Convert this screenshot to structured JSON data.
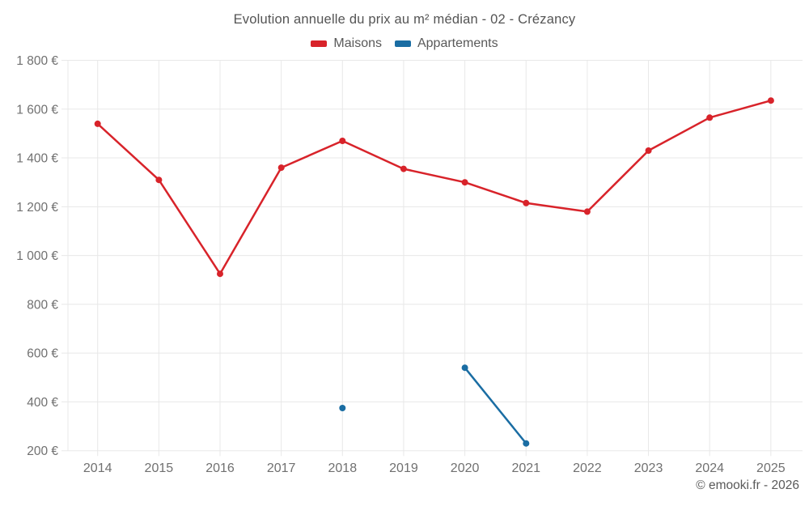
{
  "header": {
    "title": "Evolution annuelle du prix au m² médian - 02 - Crézancy"
  },
  "footer": {
    "credit": "© emooki.fr - 2026"
  },
  "colors": {
    "maisons": "#d8232a",
    "appartements": "#1a6da3",
    "gridline": "#e8e8e8",
    "axis_text": "#707070",
    "title_text": "#545454"
  },
  "chart_data": {
    "type": "line",
    "title": "Evolution annuelle du prix au m² médian - 02 - Crézancy",
    "categories": [
      "2014",
      "2015",
      "2016",
      "2017",
      "2018",
      "2019",
      "2020",
      "2021",
      "2022",
      "2023",
      "2024",
      "2025"
    ],
    "series": [
      {
        "name": "Maisons",
        "color": "#d8232a",
        "values": [
          1540,
          1310,
          925,
          1360,
          1470,
          1355,
          1300,
          1215,
          1180,
          1430,
          1565,
          1635
        ]
      },
      {
        "name": "Appartements",
        "color": "#1a6da3",
        "values": [
          null,
          null,
          null,
          null,
          375,
          null,
          540,
          230,
          null,
          null,
          null,
          null
        ]
      }
    ],
    "ylim": [
      200,
      1800
    ],
    "ytick_step": 200,
    "y_unit": "€",
    "grid": true,
    "legend_position": "top",
    "marker": "circle"
  }
}
